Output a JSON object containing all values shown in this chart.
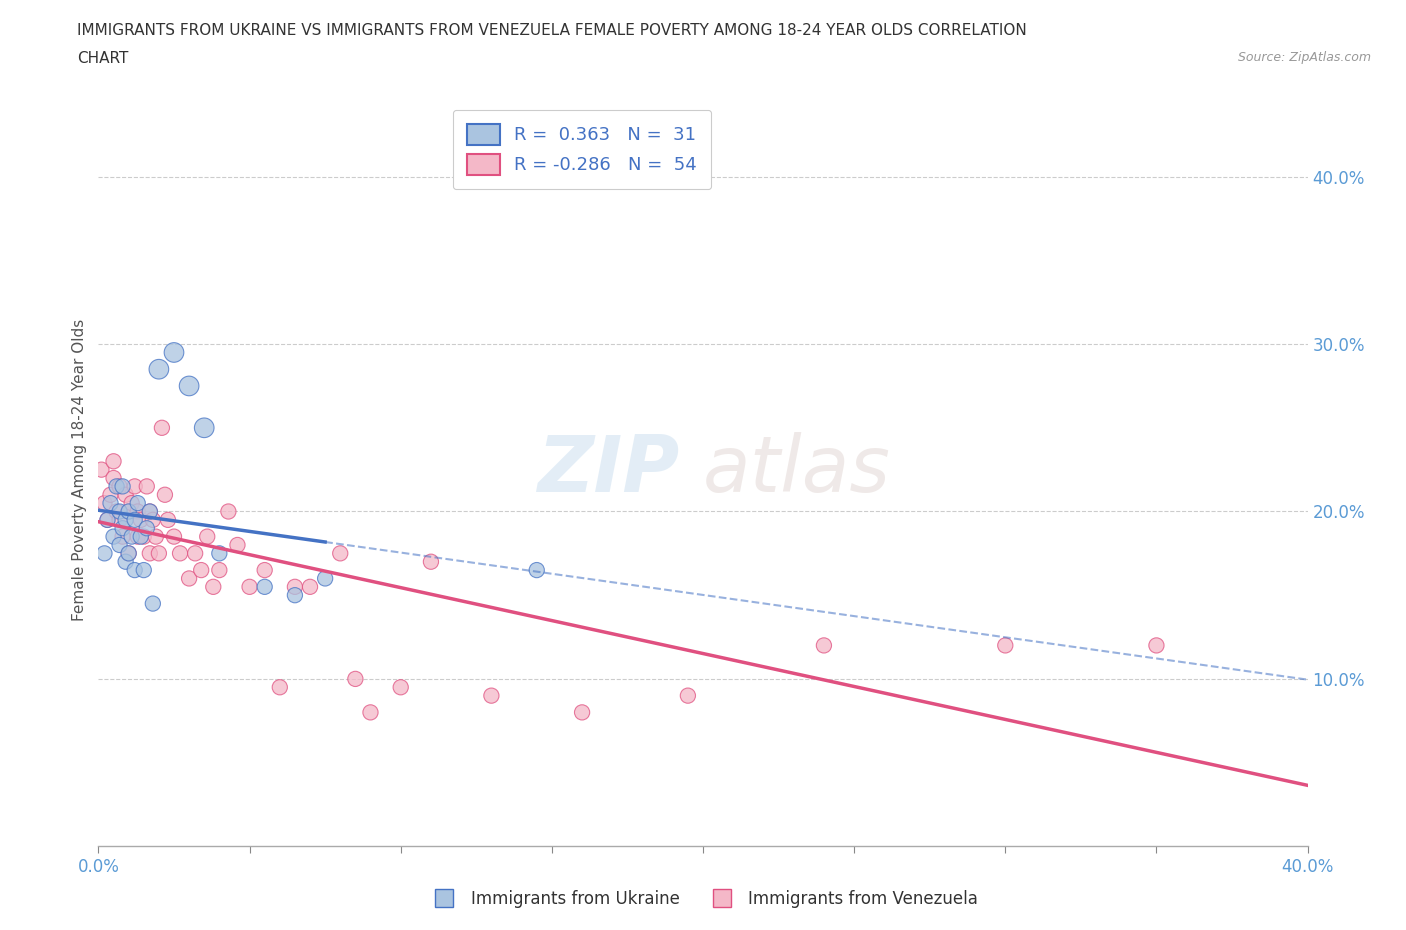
{
  "title_line1": "IMMIGRANTS FROM UKRAINE VS IMMIGRANTS FROM VENEZUELA FEMALE POVERTY AMONG 18-24 YEAR OLDS CORRELATION",
  "title_line2": "CHART",
  "source": "Source: ZipAtlas.com",
  "ylabel": "Female Poverty Among 18-24 Year Olds",
  "xlim": [
    0.0,
    0.4
  ],
  "ylim": [
    0.0,
    0.45
  ],
  "x_ticks": [
    0.0,
    0.05,
    0.1,
    0.15,
    0.2,
    0.25,
    0.3,
    0.35,
    0.4
  ],
  "x_tick_labels_shown": [
    "0.0%",
    "",
    "",
    "",
    "",
    "",
    "",
    "",
    "40.0%"
  ],
  "y_ticks_right": [
    0.1,
    0.2,
    0.3,
    0.4
  ],
  "y_tick_labels_right": [
    "10.0%",
    "20.0%",
    "30.0%",
    "40.0%"
  ],
  "ukraine_color": "#aac4e0",
  "ukraine_line_color": "#4472c4",
  "venezuela_color": "#f4b8c8",
  "venezuela_line_color": "#e05080",
  "R_ukraine": 0.363,
  "N_ukraine": 31,
  "R_venezuela": -0.286,
  "N_venezuela": 54,
  "ukraine_x": [
    0.002,
    0.003,
    0.004,
    0.005,
    0.006,
    0.007,
    0.007,
    0.008,
    0.008,
    0.009,
    0.009,
    0.01,
    0.01,
    0.011,
    0.012,
    0.012,
    0.013,
    0.014,
    0.015,
    0.016,
    0.017,
    0.018,
    0.02,
    0.025,
    0.03,
    0.035,
    0.04,
    0.055,
    0.065,
    0.075,
    0.145
  ],
  "ukraine_y": [
    0.175,
    0.195,
    0.205,
    0.185,
    0.215,
    0.18,
    0.2,
    0.19,
    0.215,
    0.17,
    0.195,
    0.175,
    0.2,
    0.185,
    0.165,
    0.195,
    0.205,
    0.185,
    0.165,
    0.19,
    0.2,
    0.145,
    0.285,
    0.295,
    0.275,
    0.25,
    0.175,
    0.155,
    0.15,
    0.16,
    0.165
  ],
  "venezuela_x": [
    0.001,
    0.002,
    0.003,
    0.004,
    0.005,
    0.005,
    0.006,
    0.007,
    0.007,
    0.008,
    0.009,
    0.01,
    0.01,
    0.011,
    0.012,
    0.013,
    0.013,
    0.014,
    0.015,
    0.016,
    0.017,
    0.017,
    0.018,
    0.019,
    0.02,
    0.021,
    0.022,
    0.023,
    0.025,
    0.027,
    0.03,
    0.032,
    0.034,
    0.036,
    0.038,
    0.04,
    0.043,
    0.046,
    0.05,
    0.055,
    0.06,
    0.065,
    0.07,
    0.08,
    0.085,
    0.09,
    0.1,
    0.11,
    0.13,
    0.16,
    0.195,
    0.24,
    0.3,
    0.35
  ],
  "venezuela_y": [
    0.225,
    0.205,
    0.195,
    0.21,
    0.22,
    0.23,
    0.2,
    0.215,
    0.195,
    0.185,
    0.21,
    0.175,
    0.2,
    0.205,
    0.215,
    0.185,
    0.2,
    0.195,
    0.185,
    0.215,
    0.175,
    0.2,
    0.195,
    0.185,
    0.175,
    0.25,
    0.21,
    0.195,
    0.185,
    0.175,
    0.16,
    0.175,
    0.165,
    0.185,
    0.155,
    0.165,
    0.2,
    0.18,
    0.155,
    0.165,
    0.095,
    0.155,
    0.155,
    0.175,
    0.1,
    0.08,
    0.095,
    0.17,
    0.09,
    0.08,
    0.09,
    0.12,
    0.12,
    0.12
  ],
  "ukraine_sizes": [
    120,
    120,
    120,
    120,
    120,
    120,
    120,
    120,
    120,
    120,
    120,
    120,
    120,
    120,
    120,
    120,
    120,
    120,
    120,
    120,
    120,
    120,
    200,
    200,
    200,
    200,
    120,
    120,
    120,
    120,
    120
  ],
  "venezuela_sizes": [
    120,
    120,
    120,
    120,
    120,
    120,
    120,
    120,
    120,
    120,
    120,
    120,
    120,
    120,
    120,
    120,
    120,
    120,
    120,
    120,
    120,
    120,
    120,
    120,
    120,
    120,
    120,
    120,
    120,
    120,
    120,
    120,
    120,
    120,
    120,
    120,
    120,
    120,
    120,
    120,
    120,
    120,
    120,
    120,
    120,
    120,
    120,
    120,
    120,
    120,
    120,
    120,
    120,
    120
  ],
  "background_color": "#ffffff",
  "grid_color": "#cccccc",
  "legend_ukraine_label_R": "R = ",
  "legend_ukraine_R_val": " 0.363",
  "legend_ukraine_label_N": "  N = ",
  "legend_ukraine_N_val": " 31",
  "legend_venezuela_label_R": "R = ",
  "legend_venezuela_R_val": "-0.286",
  "legend_venezuela_label_N": "  N = ",
  "legend_venezuela_N_val": " 54"
}
